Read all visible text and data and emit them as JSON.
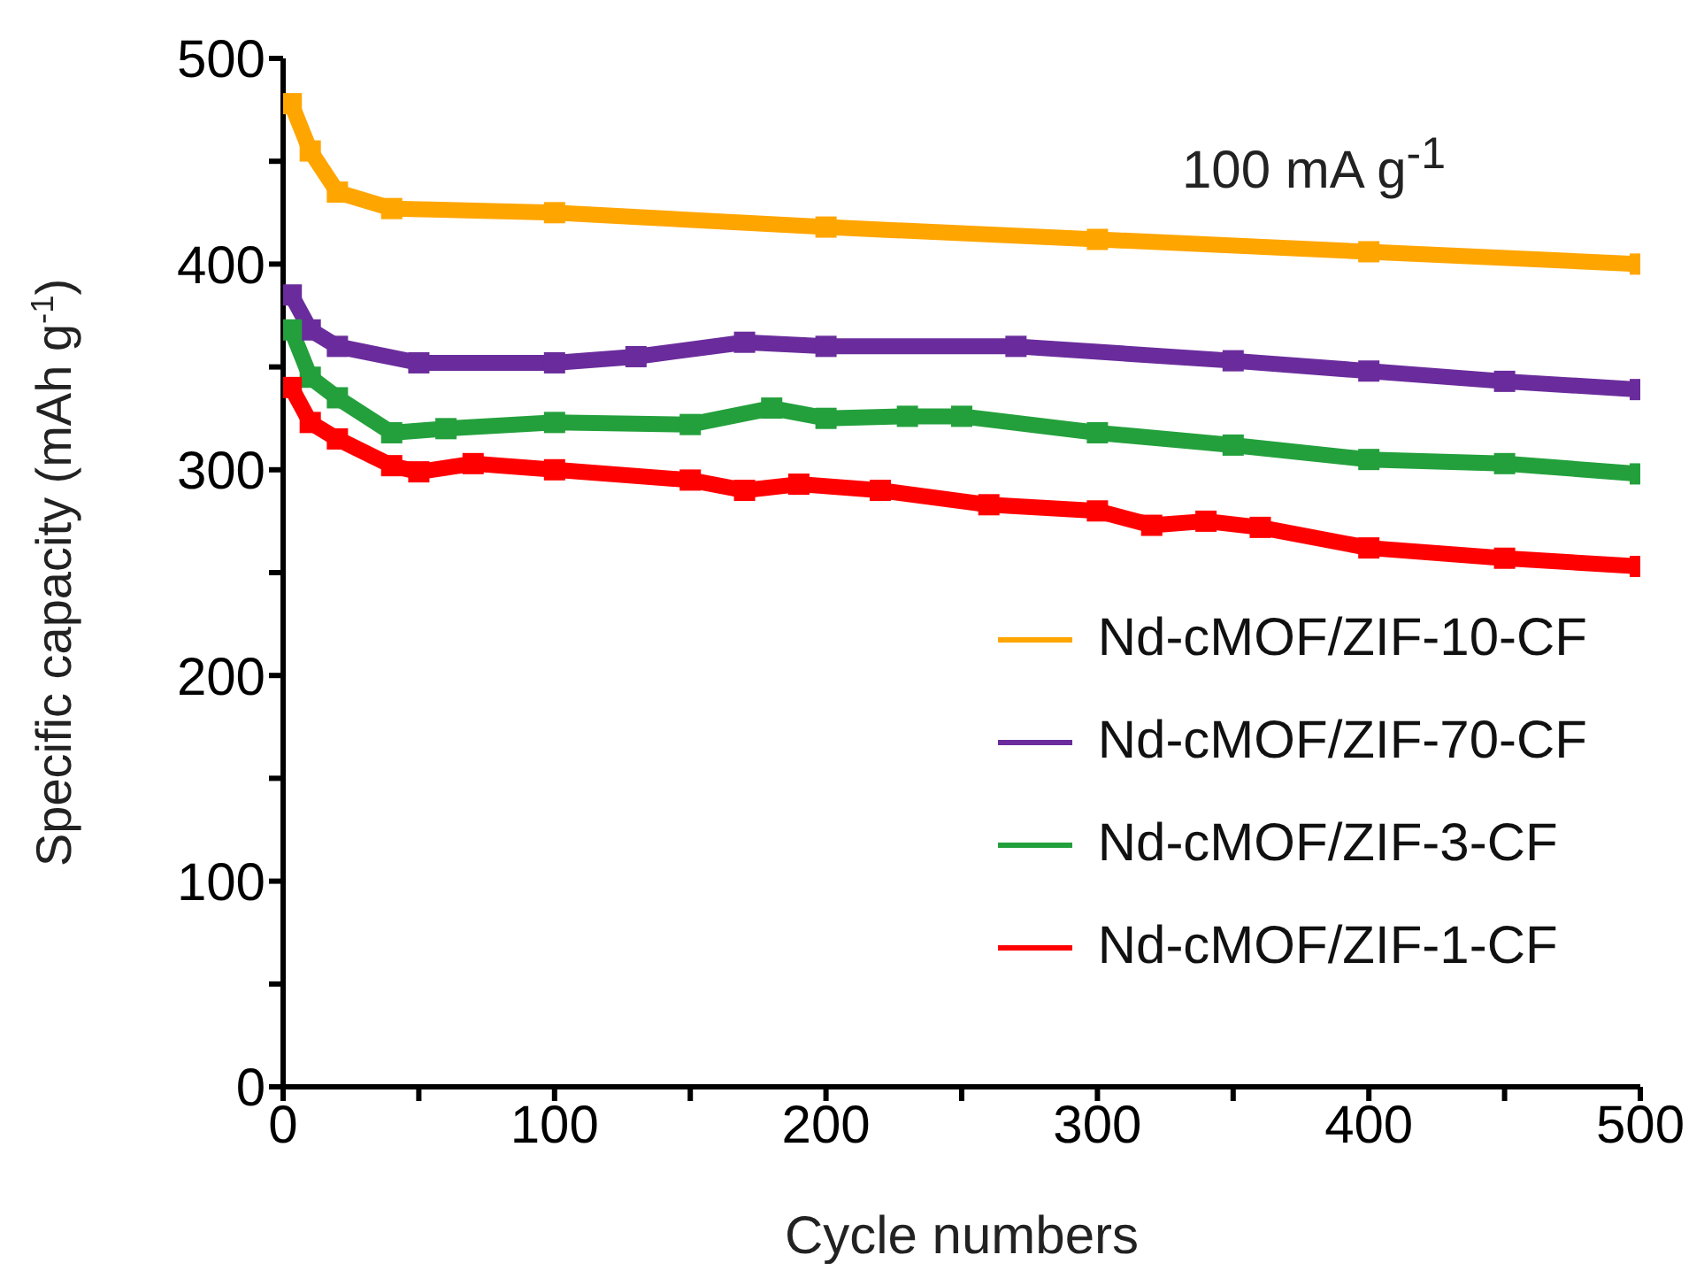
{
  "chart_data": {
    "type": "line",
    "xlabel": "Cycle numbers",
    "ylabel": "Specific capacity (mAh g$^{-1}$)",
    "annotations": [
      "100 mA g$^{-1}$"
    ],
    "xlim": [
      0,
      500
    ],
    "xticks": [
      0,
      {
        "value": 50,
        "label": null
      },
      100,
      {
        "value": 150,
        "label": null
      },
      200,
      {
        "value": 250,
        "label": null
      },
      300,
      {
        "value": 350,
        "label": null
      },
      400,
      {
        "value": 450,
        "label": null
      },
      500
    ],
    "ylim": [
      0,
      500
    ],
    "yticks": [
      0,
      {
        "value": 50,
        "label": null
      },
      100,
      {
        "value": 150,
        "label": null
      },
      200,
      {
        "value": 250,
        "label": null
      },
      300,
      {
        "value": 350,
        "label": null
      },
      400,
      {
        "value": 450,
        "label": null
      },
      500
    ],
    "grid": false,
    "legend": "bottom right",
    "marker": "square",
    "line_style": "solid",
    "series": [
      {
        "name": "Nd-cMOF/ZIF-10-CF",
        "color": "#ffa500",
        "x": [
          3,
          10,
          20,
          40,
          100,
          200,
          300,
          400,
          500
        ],
        "values": [
          478,
          455,
          435,
          427,
          425,
          418,
          412,
          406,
          400
        ]
      },
      {
        "name": "Nd-cMOF/ZIF-70-CF",
        "color": "#6a2c9c",
        "x": [
          3,
          10,
          20,
          50,
          100,
          130,
          170,
          200,
          270,
          350,
          400,
          450,
          500
        ],
        "values": [
          385,
          368,
          360,
          352,
          352,
          355,
          362,
          360,
          360,
          353,
          348,
          343,
          339
        ]
      },
      {
        "name": "Nd-cMOF/ZIF-3-CF",
        "color": "#23a03c",
        "x": [
          3,
          10,
          20,
          40,
          60,
          100,
          150,
          180,
          200,
          230,
          250,
          300,
          350,
          400,
          450,
          500
        ],
        "values": [
          368,
          345,
          335,
          318,
          320,
          323,
          322,
          330,
          325,
          326,
          326,
          318,
          312,
          305,
          303,
          298
        ]
      },
      {
        "name": "Nd-cMOF/ZIF-1-CF",
        "color": "#ff0000",
        "x": [
          3,
          10,
          20,
          40,
          50,
          70,
          100,
          150,
          170,
          190,
          220,
          260,
          300,
          320,
          340,
          360,
          400,
          450,
          500
        ],
        "values": [
          340,
          323,
          315,
          302,
          299,
          303,
          300,
          295,
          290,
          293,
          290,
          283,
          280,
          273,
          275,
          272,
          262,
          257,
          253
        ]
      }
    ]
  }
}
